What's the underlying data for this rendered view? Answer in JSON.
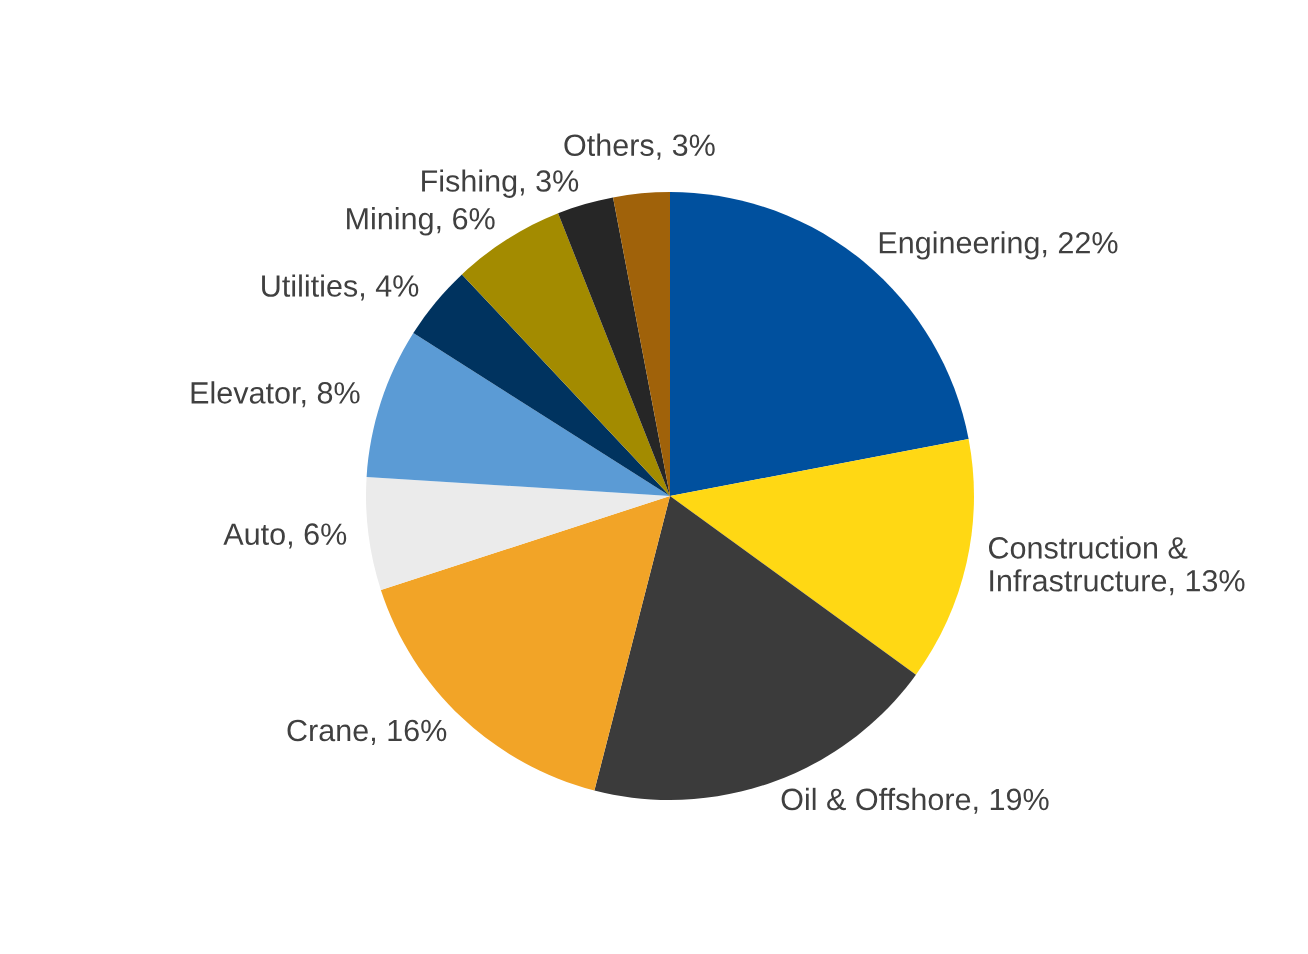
{
  "chart_data": {
    "type": "pie",
    "categories": [
      "Engineering",
      "Construction & Infrastructure",
      "Oil & Offshore",
      "Crane",
      "Auto",
      "Elevator",
      "Utilities",
      "Mining",
      "Fishing",
      "Others"
    ],
    "values": [
      22,
      13,
      19,
      16,
      6,
      8,
      4,
      6,
      3,
      3
    ],
    "value_labels": [
      "22%",
      "13%",
      "19%",
      "16%",
      "6%",
      "8%",
      "4%",
      "6%",
      "3%",
      "3%"
    ],
    "colors": [
      "#00509e",
      "#ffd814",
      "#3b3b3b",
      "#f2a427",
      "#ebebeb",
      "#5b9bd5",
      "#00335f",
      "#a38b00",
      "#262626",
      "#a0620a"
    ],
    "legend": false
  }
}
